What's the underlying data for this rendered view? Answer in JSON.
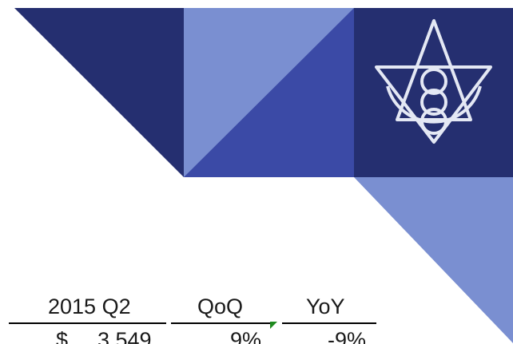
{
  "colors": {
    "navy": "#252f70",
    "royal": "#3b4aa6",
    "periwinkle": "#7a8fd1",
    "logo_stroke": "#e4e8f4",
    "comment_marker": "#1e8a1e"
  },
  "icons": [
    "star-of-david-logo-icon",
    "comment-indicator-icon"
  ],
  "table": {
    "headers": {
      "period": "2015 Q2",
      "qoq": "QoQ",
      "yoy": "YoY"
    },
    "row": {
      "currency": "$",
      "amount": "3,549",
      "qoq": "9%",
      "yoy": "-9%"
    }
  }
}
